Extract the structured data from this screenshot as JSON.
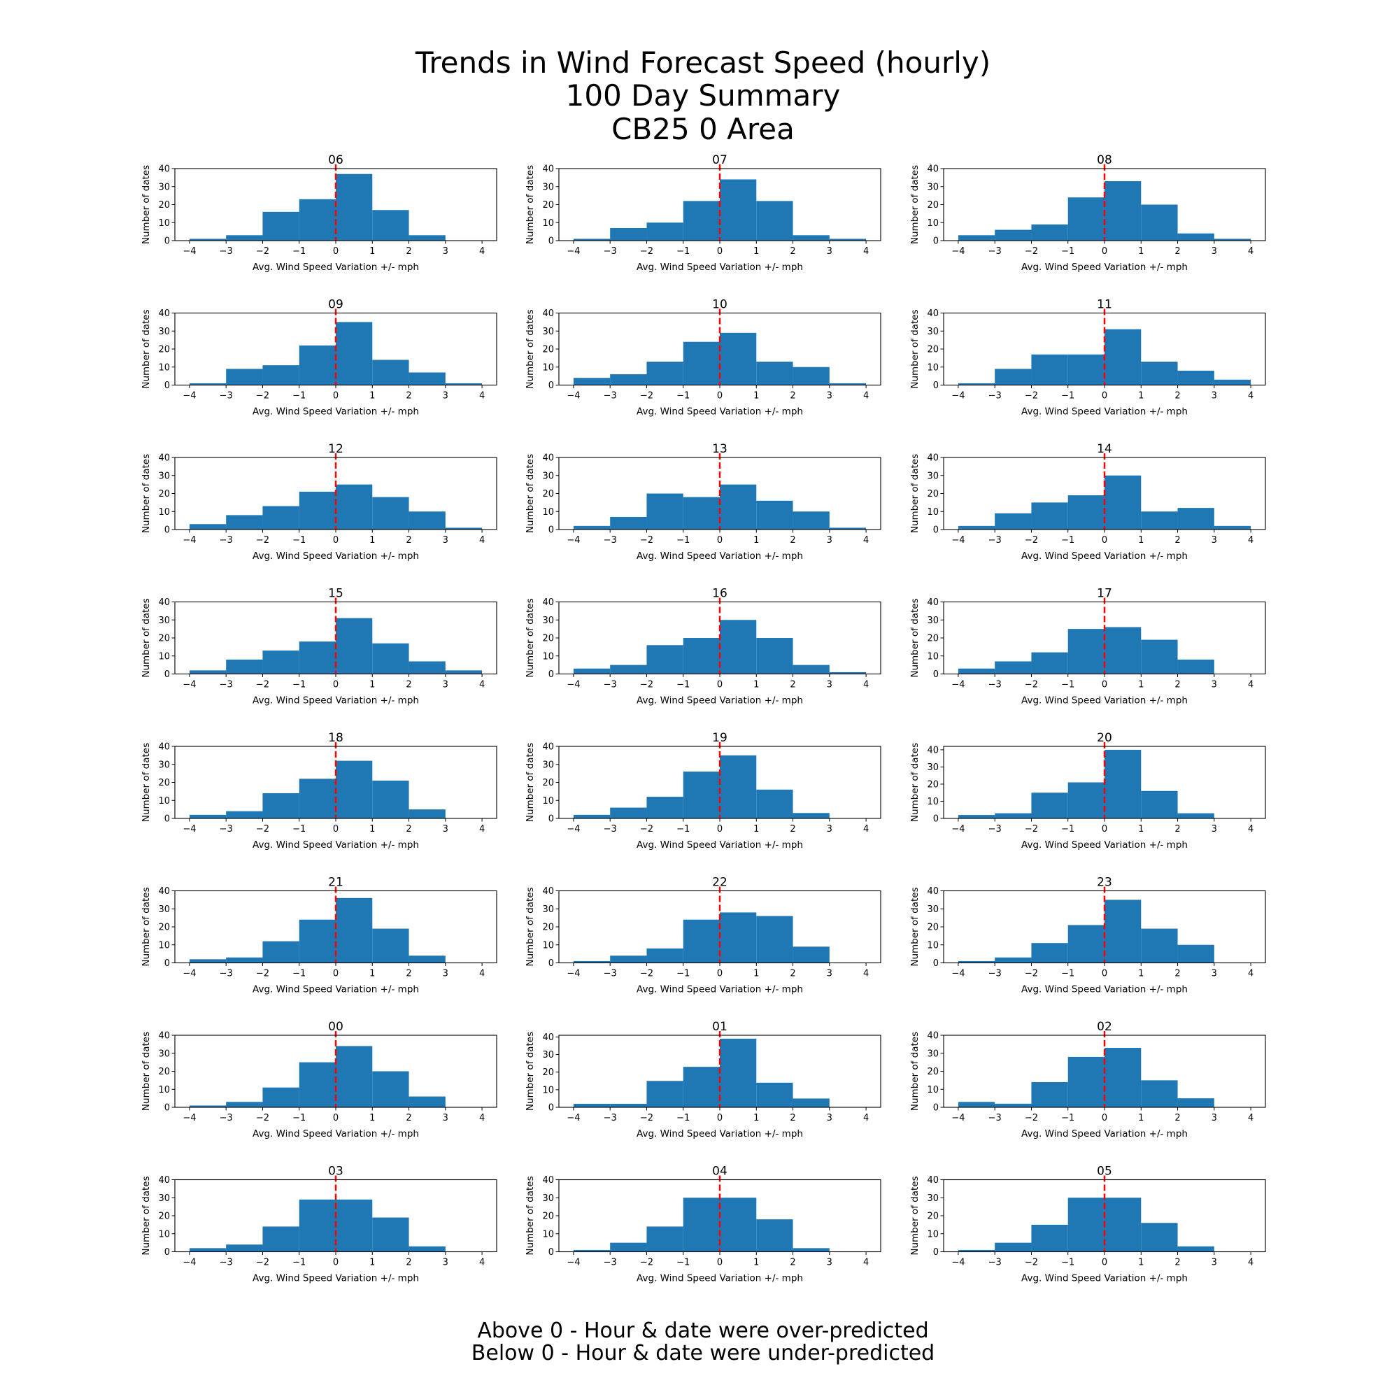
{
  "chart_data": {
    "type": "bar",
    "title_lines": [
      "Trends in Wind Forecast Speed (hourly)",
      "100 Day Summary",
      "CB25 0 Area"
    ],
    "footer_lines": [
      "Above 0 - Hour & date were over-predicted",
      "Below 0 - Hour & date were under-predicted"
    ],
    "xlabel": "Avg. Wind Speed Variation +/- mph",
    "ylabel": "Number of dates",
    "bin_edges": [
      -4,
      -3,
      -2,
      -1,
      0,
      1,
      2,
      3,
      4
    ],
    "xticks": [
      -4,
      -3,
      -2,
      -1,
      0,
      1,
      2,
      3,
      4
    ],
    "yticks": [
      0,
      10,
      20,
      30,
      40
    ],
    "xlim": [
      -4.4,
      4.4
    ],
    "reference_line": {
      "x": 0,
      "color": "#ff0000",
      "style": "dashed"
    },
    "bar_color": "#1f77b4",
    "grid": false,
    "panels": [
      {
        "title": "06",
        "values": [
          1,
          3,
          16,
          23,
          37,
          17,
          3,
          0
        ]
      },
      {
        "title": "07",
        "values": [
          1,
          7,
          10,
          22,
          34,
          22,
          3,
          1
        ]
      },
      {
        "title": "08",
        "values": [
          3,
          6,
          9,
          24,
          33,
          20,
          4,
          1
        ]
      },
      {
        "title": "09",
        "values": [
          1,
          9,
          11,
          22,
          35,
          14,
          7,
          1
        ]
      },
      {
        "title": "10",
        "values": [
          4,
          6,
          13,
          24,
          29,
          13,
          10,
          1
        ]
      },
      {
        "title": "11",
        "values": [
          1,
          9,
          17,
          17,
          31,
          13,
          8,
          3
        ]
      },
      {
        "title": "12",
        "values": [
          3,
          8,
          13,
          21,
          25,
          18,
          10,
          1
        ]
      },
      {
        "title": "13",
        "values": [
          2,
          7,
          20,
          18,
          25,
          16,
          10,
          1
        ]
      },
      {
        "title": "14",
        "values": [
          2,
          9,
          15,
          19,
          30,
          10,
          12,
          2
        ]
      },
      {
        "title": "15",
        "values": [
          2,
          8,
          13,
          18,
          31,
          17,
          7,
          2
        ]
      },
      {
        "title": "16",
        "values": [
          3,
          5,
          16,
          20,
          30,
          20,
          5,
          1
        ]
      },
      {
        "title": "17",
        "values": [
          3,
          7,
          12,
          25,
          26,
          19,
          8,
          0
        ]
      },
      {
        "title": "18",
        "values": [
          2,
          4,
          14,
          22,
          32,
          21,
          5,
          0
        ]
      },
      {
        "title": "19",
        "values": [
          2,
          6,
          12,
          26,
          35,
          16,
          3,
          0
        ]
      },
      {
        "title": "20",
        "values": [
          2,
          3,
          15,
          21,
          40,
          16,
          3,
          0
        ]
      },
      {
        "title": "21",
        "values": [
          2,
          3,
          12,
          24,
          36,
          19,
          4,
          0
        ]
      },
      {
        "title": "22",
        "values": [
          1,
          4,
          8,
          24,
          28,
          26,
          9,
          0
        ]
      },
      {
        "title": "23",
        "values": [
          1,
          3,
          11,
          21,
          35,
          19,
          10,
          0
        ]
      },
      {
        "title": "00",
        "values": [
          1,
          3,
          11,
          25,
          34,
          20,
          6,
          0
        ]
      },
      {
        "title": "01",
        "values": [
          2,
          2,
          15,
          23,
          39,
          14,
          5,
          0
        ]
      },
      {
        "title": "02",
        "values": [
          3,
          2,
          14,
          28,
          33,
          15,
          5,
          0
        ]
      },
      {
        "title": "03",
        "values": [
          2,
          4,
          14,
          29,
          29,
          19,
          3,
          0
        ]
      },
      {
        "title": "04",
        "values": [
          1,
          5,
          14,
          30,
          30,
          18,
          2,
          0
        ]
      },
      {
        "title": "05",
        "values": [
          1,
          5,
          15,
          30,
          30,
          16,
          3,
          0
        ]
      }
    ]
  }
}
